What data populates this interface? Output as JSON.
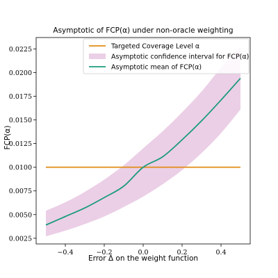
{
  "chart_data": {
    "type": "line",
    "title": "Asymptotic of FCP(α) under non-oracle weighting",
    "xlabel": "Error Δ on the weight function",
    "ylabel": "FCP(α)",
    "xlim": [
      -0.55,
      0.55
    ],
    "ylim": [
      0.0019,
      0.0237
    ],
    "x_ticks": [
      -0.4,
      -0.2,
      0.0,
      0.2,
      0.4
    ],
    "x_tick_labels": [
      "−0.4",
      "−0.2",
      "0.0",
      "0.2",
      "0.4"
    ],
    "y_ticks": [
      0.0025,
      0.005,
      0.0075,
      0.01,
      0.0125,
      0.015,
      0.0175,
      0.02,
      0.0225
    ],
    "y_tick_labels": [
      "0.0025",
      "0.0050",
      "0.0075",
      "0.0100",
      "0.0125",
      "0.0150",
      "0.0175",
      "0.0200",
      "0.0225"
    ],
    "grid": false,
    "legend_position": "top-right",
    "series": [
      {
        "name": "Targeted Coverage Level α",
        "kind": "line",
        "color": "#e08c14",
        "x": [
          -0.5,
          0.5
        ],
        "y": [
          0.01,
          0.01
        ]
      },
      {
        "name": "Asymptotic confidence interval for FCP(α)",
        "kind": "band",
        "color": "#ebcfe6",
        "x": [
          -0.5,
          -0.4,
          -0.3,
          -0.2,
          -0.1,
          0.0,
          0.1,
          0.2,
          0.3,
          0.4,
          0.5
        ],
        "lower": [
          0.0027,
          0.0033,
          0.004,
          0.0048,
          0.0058,
          0.0069,
          0.0082,
          0.0097,
          0.0115,
          0.0136,
          0.0161
        ],
        "upper": [
          0.0054,
          0.0063,
          0.0074,
          0.0087,
          0.0102,
          0.012,
          0.0138,
          0.0158,
          0.018,
          0.0205,
          0.0227
        ]
      },
      {
        "name": "Asymptotic mean of FCP(α)",
        "kind": "line",
        "color": "#1a9b7e",
        "x": [
          -0.5,
          -0.4,
          -0.3,
          -0.2,
          -0.1,
          0.0,
          0.1,
          0.2,
          0.3,
          0.4,
          0.5
        ],
        "y": [
          0.0039,
          0.0048,
          0.0057,
          0.0068,
          0.008,
          0.01,
          0.0111,
          0.0129,
          0.0149,
          0.0171,
          0.0194
        ]
      }
    ]
  }
}
